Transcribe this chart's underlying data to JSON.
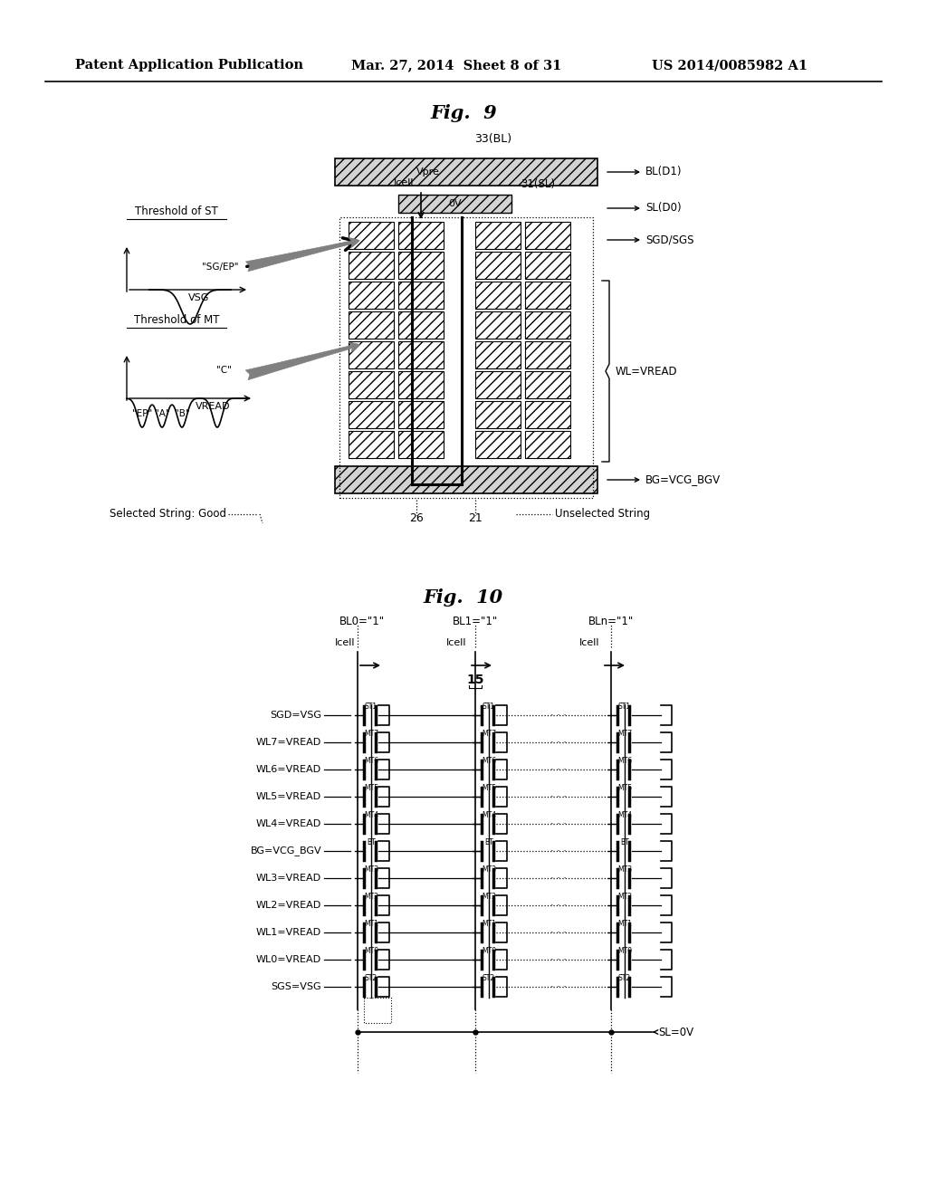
{
  "bg_color": "#ffffff",
  "header_text": "Patent Application Publication",
  "header_date": "Mar. 27, 2014  Sheet 8 of 31",
  "header_patent": "US 2014/0085982 A1",
  "fig9_title": "Fig.  9",
  "fig10_title": "Fig.  10",
  "fig9_right_labels": [
    "BL(D1)",
    "SL(D0)",
    "SGD/SGS",
    "BG=VCG_BGV"
  ],
  "fig9_wl_label": "WL=VREAD",
  "fig10_row_labels": [
    "SGD=VSG",
    "WL7=VREAD",
    "WL6=VREAD",
    "WL5=VREAD",
    "WL4=VREAD",
    "BG=VCG_BGV",
    "WL3=VREAD",
    "WL2=VREAD",
    "WL1=VREAD",
    "WL0=VREAD",
    "SGS=VSG"
  ],
  "fig10_cell_labels": [
    "ST1",
    "MT7",
    "MT6",
    "MT5",
    "MT4",
    "BT",
    "MT3",
    "MT2",
    "MT1",
    "MT0",
    "ST2"
  ],
  "fig10_bl_labels": [
    "BL0=\"1\"",
    "BL1=\"1\"",
    "BLn=\"1\""
  ],
  "fig10_sl": "SL=0V",
  "fig10_15": "15"
}
